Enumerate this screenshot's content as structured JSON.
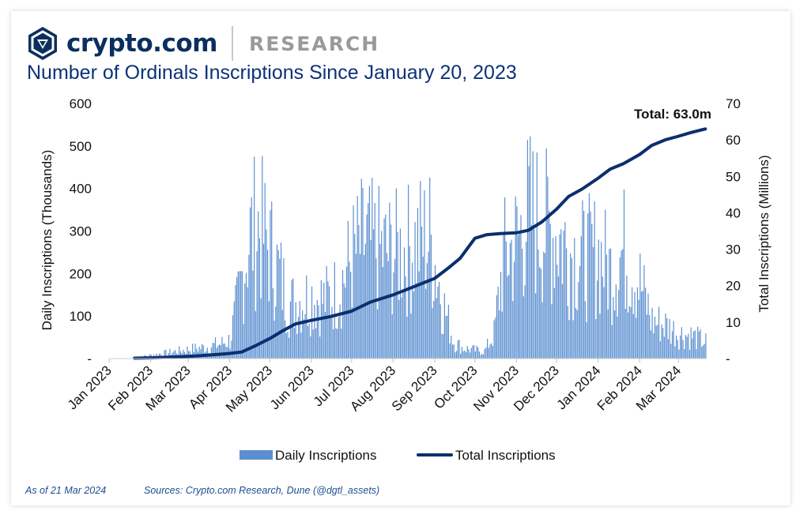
{
  "header": {
    "brand": "crypto.com",
    "division": "RESEARCH",
    "logo_icon": "crypto-com-lion-shield"
  },
  "footer": {
    "as_of": "As of 21 Mar 2024",
    "sources": "Sources: Crypto.com Research, Dune (@dgtl_assets)"
  },
  "colors": {
    "daily_bars": "#5b8fd0",
    "total_line": "#0b2f6e",
    "title": "#0b3278",
    "brand": "#0b2f5e",
    "footer": "#1d4f91"
  },
  "chart_data": {
    "type": "bar",
    "title": "Number of Ordinals Inscriptions Since January 20, 2023",
    "ylabel": "Daily Inscriptions (Thousands)",
    "y2label": "Total Inscriptions (Millions)",
    "ylim": [
      0,
      600
    ],
    "y2lim": [
      0,
      70
    ],
    "yticks": [
      "-",
      "100",
      "200",
      "300",
      "400",
      "500",
      "600"
    ],
    "y2ticks": [
      "-",
      "10",
      "20",
      "30",
      "40",
      "50",
      "60",
      "70"
    ],
    "categories": [
      "Jan 2023",
      "Feb 2023",
      "Mar 2023",
      "Apr 2023",
      "May 2023",
      "Jun 2023",
      "Jul 2023",
      "Aug 2023",
      "Sep 2023",
      "Oct 2023",
      "Nov 2023",
      "Dec 2023",
      "Jan 2024",
      "Feb 2024",
      "Mar 2024"
    ],
    "legend": [
      "Daily Inscriptions",
      "Total Inscriptions"
    ],
    "legend_position": "bottom",
    "annotation": "Total: 63.0m",
    "grid": false,
    "series": [
      {
        "name": "Daily Inscriptions",
        "type": "bar",
        "axis": "left",
        "x": [
          "2023-01-20",
          "2023-02-01",
          "2023-02-15",
          "2023-03-01",
          "2023-03-15",
          "2023-03-25",
          "2023-04-01",
          "2023-04-08",
          "2023-04-15",
          "2023-04-22",
          "2023-05-01",
          "2023-05-08",
          "2023-05-15",
          "2023-05-22",
          "2023-06-01",
          "2023-06-10",
          "2023-06-20",
          "2023-07-01",
          "2023-07-10",
          "2023-07-20",
          "2023-08-01",
          "2023-08-10",
          "2023-08-20",
          "2023-08-28",
          "2023-09-01",
          "2023-09-08",
          "2023-09-15",
          "2023-09-22",
          "2023-10-01",
          "2023-10-08",
          "2023-10-15",
          "2023-10-22",
          "2023-11-01",
          "2023-11-10",
          "2023-11-20",
          "2023-12-01",
          "2023-12-10",
          "2023-12-20",
          "2024-01-01",
          "2024-01-10",
          "2024-01-20",
          "2024-02-01",
          "2024-02-10",
          "2024-02-20",
          "2024-03-01",
          "2024-03-10",
          "2024-03-21"
        ],
        "values": [
          2,
          8,
          15,
          22,
          28,
          35,
          45,
          160,
          290,
          320,
          260,
          200,
          130,
          140,
          150,
          140,
          160,
          240,
          280,
          260,
          250,
          260,
          280,
          290,
          230,
          120,
          40,
          25,
          20,
          18,
          60,
          240,
          280,
          350,
          320,
          300,
          260,
          240,
          250,
          210,
          260,
          180,
          90,
          80,
          60,
          55,
          40
        ]
      },
      {
        "name": "Total Inscriptions",
        "type": "line",
        "axis": "right",
        "x": [
          "2023-01-20",
          "2023-02-01",
          "2023-02-15",
          "2023-03-01",
          "2023-03-15",
          "2023-03-25",
          "2023-04-01",
          "2023-04-10",
          "2023-04-20",
          "2023-05-01",
          "2023-05-10",
          "2023-05-20",
          "2023-06-01",
          "2023-06-15",
          "2023-07-01",
          "2023-07-15",
          "2023-08-01",
          "2023-08-15",
          "2023-09-01",
          "2023-09-10",
          "2023-09-20",
          "2023-10-01",
          "2023-10-10",
          "2023-10-20",
          "2023-11-01",
          "2023-11-10",
          "2023-11-20",
          "2023-12-01",
          "2023-12-10",
          "2023-12-20",
          "2024-01-01",
          "2024-01-10",
          "2024-01-20",
          "2024-02-01",
          "2024-02-10",
          "2024-02-20",
          "2024-03-01",
          "2024-03-10",
          "2024-03-21"
        ],
        "values": [
          0.1,
          0.2,
          0.4,
          0.6,
          0.9,
          1.2,
          1.4,
          1.8,
          3.5,
          5.5,
          7.5,
          9.5,
          10.5,
          11.5,
          13.0,
          15.5,
          17.5,
          19.5,
          22.0,
          24.5,
          27.5,
          33.0,
          34.0,
          34.3,
          34.5,
          35.2,
          37.5,
          41.0,
          44.5,
          46.5,
          49.5,
          52.0,
          53.5,
          56.0,
          58.5,
          60.0,
          61.0,
          62.0,
          63.0
        ]
      }
    ]
  }
}
